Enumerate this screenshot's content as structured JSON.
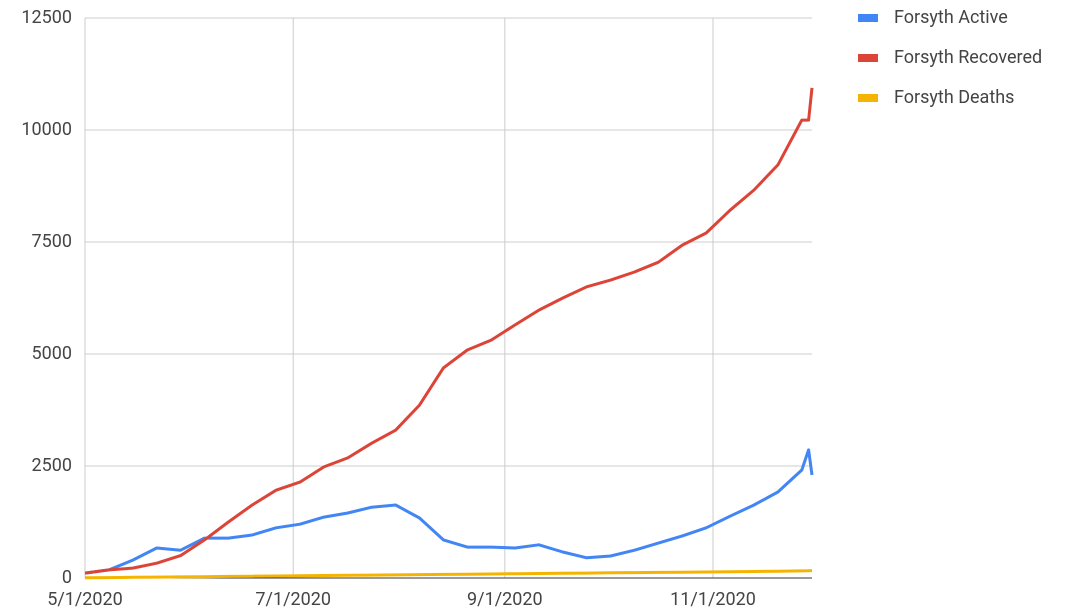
{
  "chart_data": {
    "type": "line",
    "x": [
      "5/1/2020",
      "5/8/2020",
      "5/15/2020",
      "5/22/2020",
      "5/29/2020",
      "6/5/2020",
      "6/12/2020",
      "6/19/2020",
      "6/26/2020",
      "7/3/2020",
      "7/10/2020",
      "7/17/2020",
      "7/24/2020",
      "7/31/2020",
      "8/7/2020",
      "8/14/2020",
      "8/21/2020",
      "8/28/2020",
      "9/4/2020",
      "9/11/2020",
      "9/18/2020",
      "9/25/2020",
      "10/2/2020",
      "10/9/2020",
      "10/16/2020",
      "10/23/2020",
      "10/30/2020",
      "11/6/2020",
      "11/13/2020",
      "11/20/2020",
      "11/27/2020",
      "11/29/2020",
      "11/30/2020"
    ],
    "series": [
      {
        "name": "Forsyth Active",
        "color": "#4285f4",
        "values": [
          110,
          180,
          400,
          670,
          620,
          890,
          890,
          960,
          1120,
          1200,
          1360,
          1450,
          1580,
          1630,
          1340,
          850,
          690,
          690,
          670,
          740,
          580,
          450,
          490,
          620,
          780,
          940,
          1120,
          1380,
          1630,
          1920,
          2410,
          2860,
          2300
        ]
      },
      {
        "name": "Forsyth Recovered",
        "color": "#db4437",
        "values": [
          110,
          180,
          220,
          330,
          500,
          850,
          1250,
          1630,
          1960,
          2140,
          2480,
          2680,
          3010,
          3300,
          3860,
          4690,
          5090,
          5310,
          5650,
          5980,
          6250,
          6500,
          6650,
          6830,
          7050,
          7430,
          7700,
          8210,
          8660,
          9220,
          10220,
          10220,
          10940
        ]
      },
      {
        "name": "Forsyth Deaths",
        "color": "#f4b400",
        "values": [
          5,
          10,
          15,
          20,
          25,
          30,
          35,
          40,
          45,
          50,
          55,
          60,
          65,
          70,
          75,
          80,
          85,
          90,
          95,
          100,
          105,
          110,
          115,
          120,
          125,
          130,
          135,
          140,
          145,
          150,
          158,
          160,
          165
        ]
      }
    ],
    "xlim": [
      "5/1/2020",
      "11/30/2020"
    ],
    "xticks": [
      "5/1/2020",
      "7/1/2020",
      "9/1/2020",
      "11/1/2020"
    ],
    "ylim": [
      0,
      12500
    ],
    "yticks": [
      0,
      2500,
      5000,
      7500,
      10000,
      12500
    ],
    "grid": true,
    "legend": "right"
  }
}
